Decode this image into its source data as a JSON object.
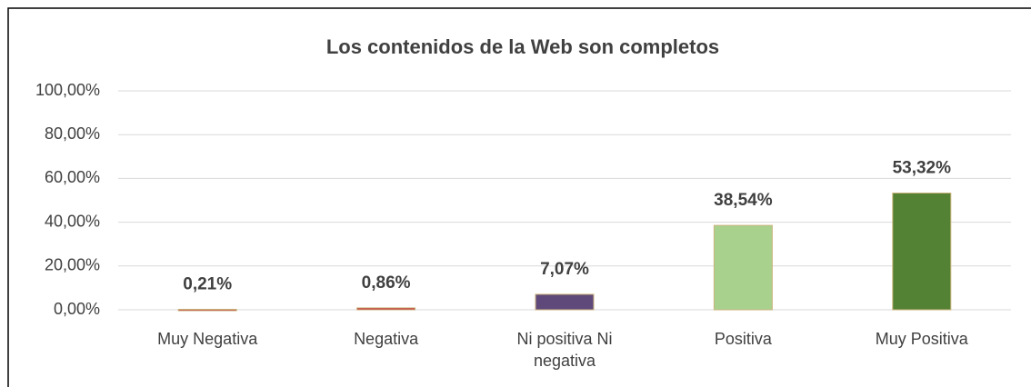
{
  "chart_data": {
    "type": "bar",
    "title": "Los contenidos de la Web son completos",
    "categories": [
      "Muy Negativa",
      "Negativa",
      "Ni positiva Ni negativa",
      "Positiva",
      "Muy Positiva"
    ],
    "values": [
      0.21,
      0.86,
      7.07,
      38.54,
      53.32
    ],
    "value_labels": [
      "0,21%",
      "0,86%",
      "7,07%",
      "38,54%",
      "53,32%"
    ],
    "colors": [
      "#c0272d",
      "#c0272d",
      "#5f497a",
      "#a9d18e",
      "#548235"
    ],
    "ylim": [
      0,
      100
    ],
    "yticks": [
      {
        "value": 0,
        "label": "0,00%"
      },
      {
        "value": 20,
        "label": "20,00%"
      },
      {
        "value": 40,
        "label": "40,00%"
      },
      {
        "value": 60,
        "label": "60,00%"
      },
      {
        "value": 80,
        "label": "80,00%"
      },
      {
        "value": 100,
        "label": "100,00%"
      }
    ],
    "grid": true
  }
}
